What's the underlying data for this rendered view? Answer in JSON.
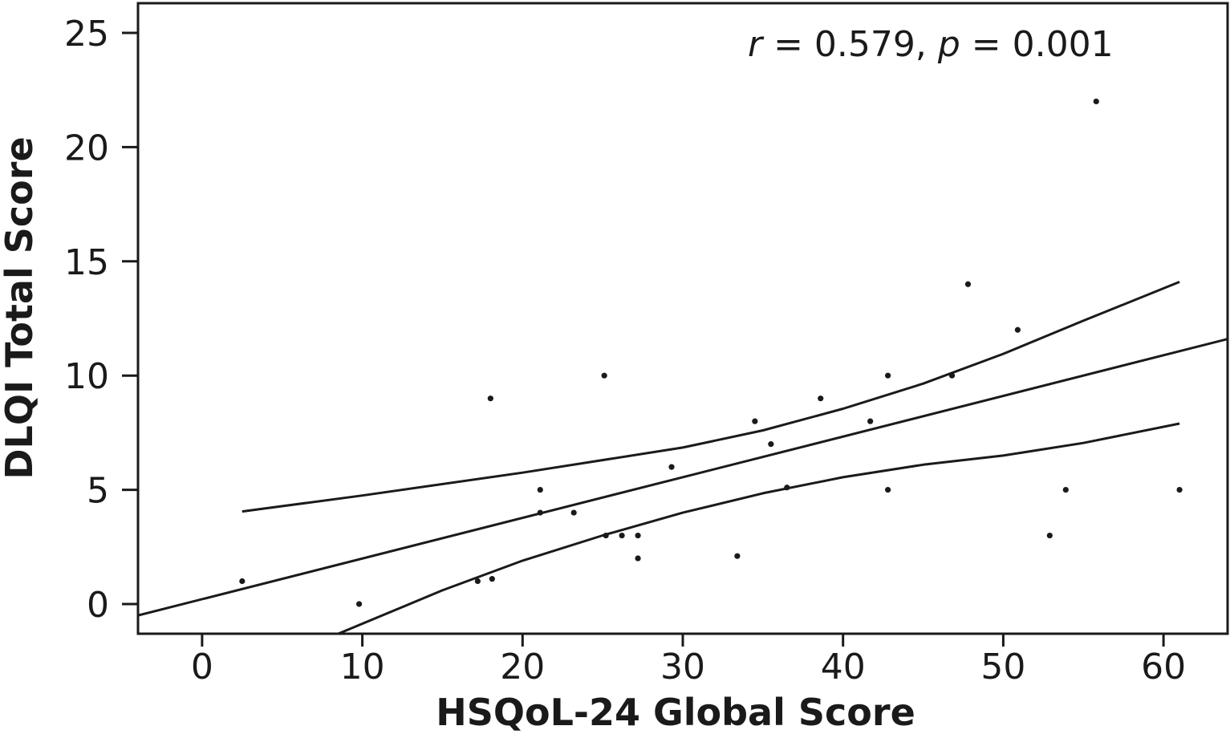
{
  "chart_data": {
    "type": "scatter",
    "title": "",
    "xlabel": "HSQoL-24 Global Score",
    "ylabel": "DLQI Total Score",
    "xlim": [
      -4,
      64
    ],
    "ylim": [
      -1.3,
      26.3
    ],
    "xticks": [
      0,
      10,
      20,
      30,
      40,
      50,
      60
    ],
    "yticks": [
      0,
      5,
      10,
      15,
      20,
      25
    ],
    "grid": false,
    "annotation": {
      "r_symbol": "r",
      "r_text": " = 0.579, ",
      "p_symbol": "p",
      "p_text": " = 0.001"
    },
    "points": [
      {
        "x": 2.5,
        "y": 1
      },
      {
        "x": 9.8,
        "y": 0
      },
      {
        "x": 17.2,
        "y": 1
      },
      {
        "x": 18.0,
        "y": 9
      },
      {
        "x": 18.1,
        "y": 1.1
      },
      {
        "x": 21.1,
        "y": 5
      },
      {
        "x": 21.1,
        "y": 4
      },
      {
        "x": 23.2,
        "y": 4
      },
      {
        "x": 25.1,
        "y": 10
      },
      {
        "x": 25.2,
        "y": 3
      },
      {
        "x": 26.2,
        "y": 3
      },
      {
        "x": 27.2,
        "y": 3
      },
      {
        "x": 27.2,
        "y": 2
      },
      {
        "x": 29.3,
        "y": 6
      },
      {
        "x": 33.4,
        "y": 2.1
      },
      {
        "x": 34.5,
        "y": 8
      },
      {
        "x": 35.5,
        "y": 7
      },
      {
        "x": 36.5,
        "y": 5.1
      },
      {
        "x": 38.6,
        "y": 9
      },
      {
        "x": 41.7,
        "y": 8
      },
      {
        "x": 42.8,
        "y": 10
      },
      {
        "x": 42.8,
        "y": 5
      },
      {
        "x": 46.8,
        "y": 10
      },
      {
        "x": 47.8,
        "y": 14
      },
      {
        "x": 50.9,
        "y": 12
      },
      {
        "x": 52.9,
        "y": 3
      },
      {
        "x": 53.9,
        "y": 5
      },
      {
        "x": 55.8,
        "y": 22
      },
      {
        "x": 61.0,
        "y": 5
      }
    ],
    "fit_line": {
      "x": [
        -4,
        64
      ],
      "y": [
        -0.5,
        11.6
      ]
    },
    "ci_upper": {
      "x": [
        2.5,
        10,
        20,
        30,
        35,
        40,
        45,
        50,
        55,
        61
      ],
      "y": [
        4.05,
        4.75,
        5.75,
        6.85,
        7.6,
        8.55,
        9.65,
        10.95,
        12.4,
        14.1
      ]
    },
    "ci_lower": {
      "x": [
        8.5,
        15,
        20,
        25,
        30,
        35,
        40,
        45,
        50,
        55,
        61
      ],
      "y": [
        -1.3,
        0.6,
        1.9,
        3.0,
        4.0,
        4.85,
        5.55,
        6.1,
        6.5,
        7.05,
        7.9
      ]
    }
  }
}
